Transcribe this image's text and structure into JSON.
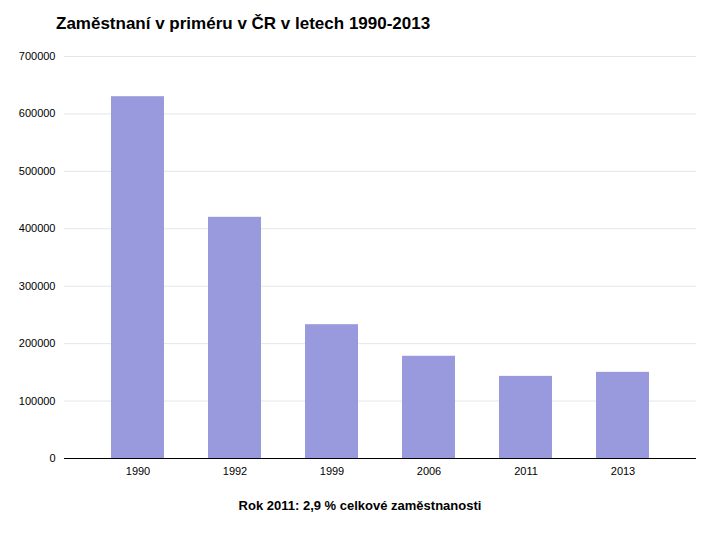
{
  "chart_data": {
    "type": "bar",
    "title": "Zaměstnaní v priméru v ČR v letech 1990-2013",
    "subtitle": "Rok 2011: 2,9 % celkové zaměstnanosti",
    "categories": [
      "1990",
      "1992",
      "1999",
      "2006",
      "2011",
      "2013"
    ],
    "values": [
      630000,
      420000,
      233000,
      178000,
      143000,
      150000
    ],
    "color": "#9999dd",
    "ylim": [
      0,
      700000
    ],
    "yticks": [
      0,
      100000,
      200000,
      300000,
      400000,
      500000,
      600000,
      700000
    ],
    "grid": true
  }
}
